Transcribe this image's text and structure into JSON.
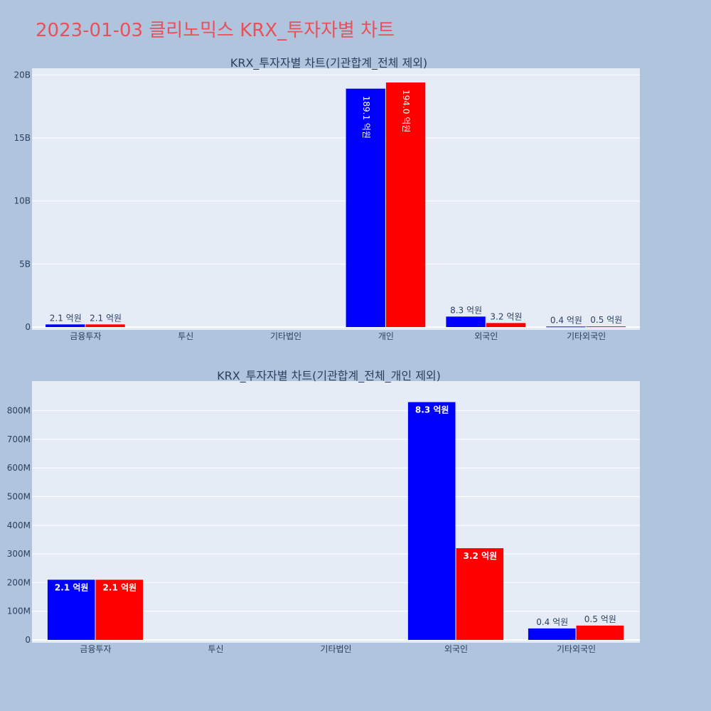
{
  "page": {
    "title": "2023-01-03 클리노믹스 KRX_투자자별 차트",
    "background_color": "#b0c4de",
    "title_color": "#e8505b",
    "plot_background_color": "#e5ecf6",
    "buy_color": "#0000ff",
    "sell_color": "#ff0000"
  },
  "chart_data": [
    {
      "type": "bar",
      "title": "KRX_투자자별 차트(기관합계_전체 제외)",
      "categories": [
        "금융투자",
        "투신",
        "기타법인",
        "개인",
        "외국인",
        "기타외국인"
      ],
      "ylim": [
        0,
        20000000000
      ],
      "yticks": [
        0,
        5000000000,
        10000000000,
        15000000000,
        20000000000
      ],
      "yticklabels": [
        "0",
        "5B",
        "10B",
        "15B",
        "20B"
      ],
      "grid": true,
      "legend": false,
      "series": [
        {
          "color": "#0000ff",
          "values": [
            210000000,
            0,
            0,
            18910000000,
            830000000,
            40000000
          ],
          "labels": [
            "2.1 억원",
            "",
            "",
            "189.1 억원",
            "8.3 억원",
            "0.4 억원"
          ]
        },
        {
          "color": "#ff0000",
          "values": [
            210000000,
            0,
            0,
            19400000000,
            320000000,
            50000000
          ],
          "labels": [
            "2.1 억원",
            "",
            "",
            "194.0 억원",
            "3.2 억원",
            "0.5 억원"
          ]
        }
      ]
    },
    {
      "type": "bar",
      "title": "KRX_투자자별 차트(기관합계_전체_개인 제외)",
      "categories": [
        "금융투자",
        "투신",
        "기타법인",
        "외국인",
        "기타외국인"
      ],
      "ylim": [
        0,
        880000000
      ],
      "yticks": [
        0,
        100000000,
        200000000,
        300000000,
        400000000,
        500000000,
        600000000,
        700000000,
        800000000
      ],
      "yticklabels": [
        "0",
        "100M",
        "200M",
        "300M",
        "400M",
        "500M",
        "600M",
        "700M",
        "800M"
      ],
      "grid": true,
      "legend": false,
      "series": [
        {
          "color": "#0000ff",
          "values": [
            210000000,
            0,
            0,
            830000000,
            40000000
          ],
          "labels": [
            "2.1 억원",
            "",
            "",
            "8.3 억원",
            "0.4 억원"
          ]
        },
        {
          "color": "#ff0000",
          "values": [
            210000000,
            0,
            0,
            320000000,
            50000000
          ],
          "labels": [
            "2.1 억원",
            "",
            "",
            "3.2 억원",
            "0.5 억원"
          ]
        }
      ]
    }
  ]
}
